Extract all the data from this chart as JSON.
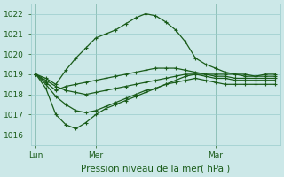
{
  "background_color": "#cce8e8",
  "grid_color": "#99cccc",
  "line_color": "#1a5c1a",
  "marker": "+",
  "markersize": 3,
  "linewidth": 0.9,
  "xlabel": "Pression niveau de la mer( hPa )",
  "xlabel_fontsize": 7.5,
  "ylim": [
    1015.5,
    1022.5
  ],
  "yticks": [
    1016,
    1017,
    1018,
    1019,
    1020,
    1021,
    1022
  ],
  "tick_fontsize": 6.5,
  "xtick_labels": [
    "Lun",
    "Mer",
    "Mar"
  ],
  "xtick_positions": [
    0,
    6,
    18
  ],
  "vline_positions": [
    0,
    6,
    18
  ],
  "n_points": 25,
  "series": [
    [
      1019.0,
      1018.8,
      1018.5,
      1019.2,
      1019.8,
      1020.3,
      1020.8,
      1021.0,
      1021.2,
      1021.5,
      1021.8,
      1022.0,
      1021.9,
      1021.6,
      1021.2,
      1020.6,
      1019.8,
      1019.5,
      1019.3,
      1019.1,
      1019.0,
      1019.0,
      1018.9,
      1019.0,
      1019.0
    ],
    [
      1019.0,
      1018.6,
      1018.2,
      1018.4,
      1018.5,
      1018.6,
      1018.7,
      1018.8,
      1018.9,
      1019.0,
      1019.1,
      1019.2,
      1019.3,
      1019.3,
      1019.3,
      1019.2,
      1019.1,
      1019.0,
      1018.9,
      1018.9,
      1018.8,
      1018.8,
      1018.8,
      1018.8,
      1018.8
    ],
    [
      1019.0,
      1018.3,
      1017.0,
      1016.5,
      1016.3,
      1016.6,
      1017.0,
      1017.3,
      1017.5,
      1017.7,
      1017.9,
      1018.1,
      1018.3,
      1018.5,
      1018.7,
      1018.9,
      1019.0,
      1019.0,
      1019.0,
      1019.0,
      1019.0,
      1018.9,
      1018.9,
      1018.9,
      1018.9
    ],
    [
      1019.0,
      1018.7,
      1018.4,
      1018.2,
      1018.1,
      1018.0,
      1018.1,
      1018.2,
      1018.3,
      1018.4,
      1018.5,
      1018.6,
      1018.7,
      1018.8,
      1018.9,
      1019.0,
      1019.0,
      1018.9,
      1018.8,
      1018.8,
      1018.7,
      1018.7,
      1018.7,
      1018.7,
      1018.7
    ],
    [
      1019.0,
      1018.5,
      1017.9,
      1017.5,
      1017.2,
      1017.1,
      1017.2,
      1017.4,
      1017.6,
      1017.8,
      1018.0,
      1018.2,
      1018.3,
      1018.5,
      1018.6,
      1018.7,
      1018.8,
      1018.7,
      1018.6,
      1018.5,
      1018.5,
      1018.5,
      1018.5,
      1018.5,
      1018.5
    ]
  ]
}
